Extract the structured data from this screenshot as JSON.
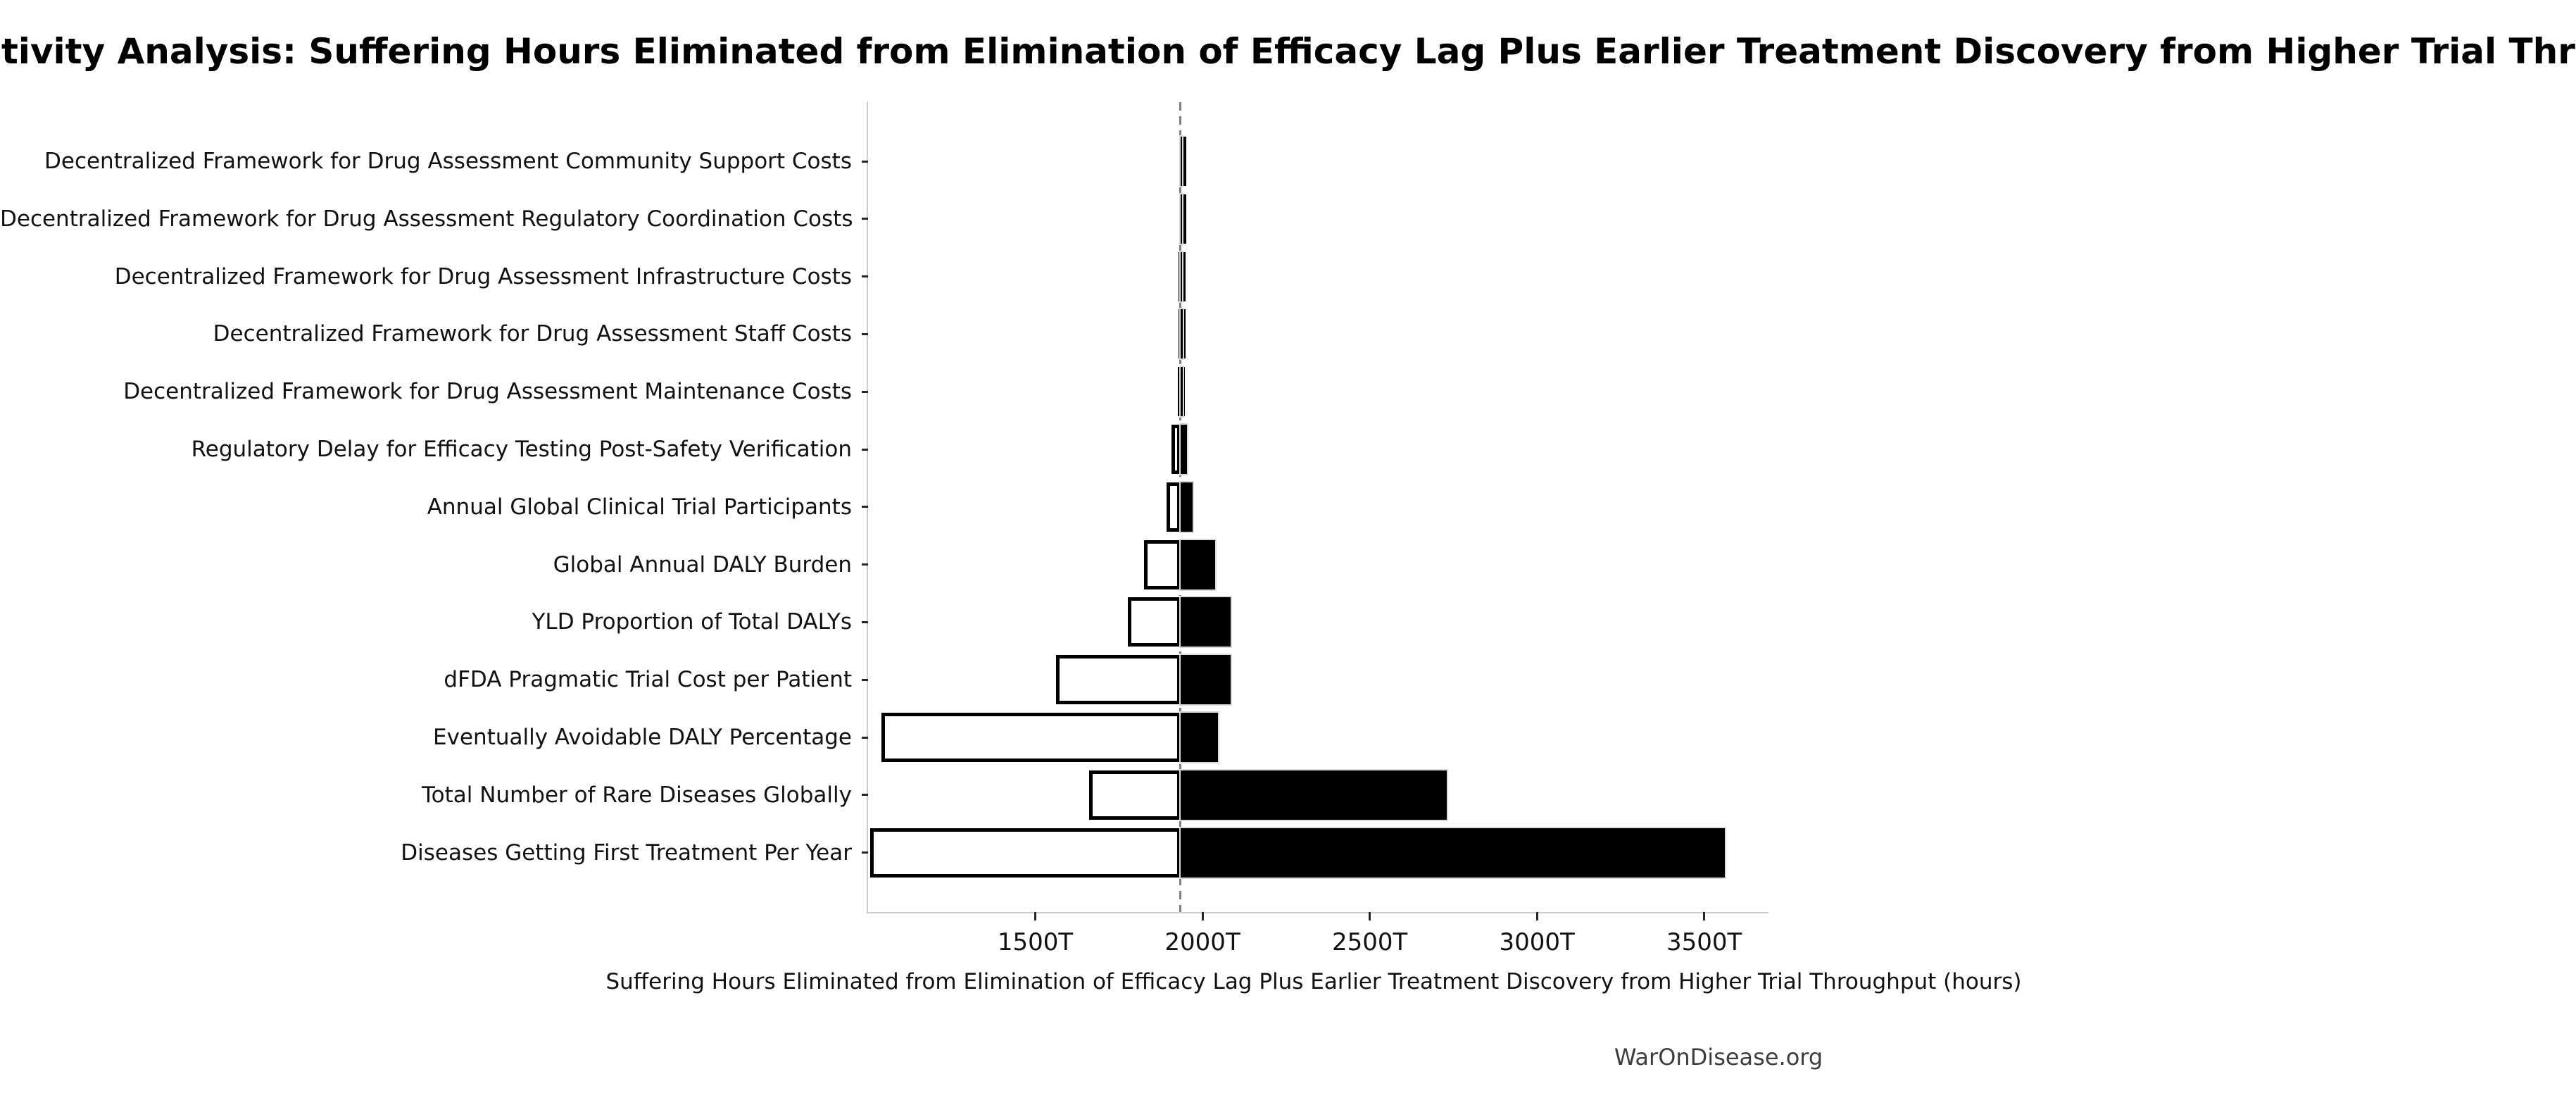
{
  "title": "Sensitivity Analysis: Suffering Hours Eliminated from Elimination of Efficacy Lag Plus Earlier Treatment Discovery from Higher Trial Throughput",
  "footer": "WarOnDisease.org",
  "x_axis": {
    "label": "Suffering Hours Eliminated from Elimination of Efficacy Lag Plus Earlier Treatment Discovery from Higher Trial Throughput (hours)",
    "tick_labels": [
      "1500T",
      "2000T",
      "2500T",
      "3000T",
      "3500T"
    ],
    "tick_values": [
      1500,
      2000,
      2500,
      3000,
      3500
    ],
    "unit": "T"
  },
  "colors": {
    "high_bar_fill": "#000000",
    "low_bar_fill": "#ffffff",
    "low_bar_border": "#000000",
    "high_bar_halo": "#d9d9d9",
    "spine": "#cccccc",
    "baseline_dash": "#7f7f7f",
    "text": "#111111",
    "footer_text": "#3d3d3d"
  },
  "chart_data": {
    "type": "bar",
    "subtype": "tornado",
    "orientation": "horizontal",
    "title": "Sensitivity Analysis: Suffering Hours Eliminated from Elimination of Efficacy Lag Plus Earlier Treatment Discovery from Higher Trial Throughput",
    "xlabel": "Suffering Hours Eliminated from Elimination of Efficacy Lag Plus Earlier Treatment Discovery from Higher Trial Throughput (hours)",
    "ylabel": "",
    "xlim": [
      1000,
      3688
    ],
    "baseline": 1934,
    "grid": false,
    "legend": false,
    "unit_note": "values in trillions of hours (T)",
    "categories": [
      "Decentralized Framework for Drug Assessment Community Support Costs",
      "Decentralized Framework for Drug Assessment Regulatory Coordination Costs",
      "Decentralized Framework for Drug Assessment Infrastructure Costs",
      "Decentralized Framework for Drug Assessment Staff Costs",
      "Decentralized Framework for Drug Assessment Maintenance Costs",
      "Regulatory Delay for Efficacy Testing Post-Safety Verification",
      "Annual Global Clinical Trial Participants",
      "Global Annual DALY Burden",
      "YLD Proportion of Total DALYs",
      "dFDA Pragmatic Trial Cost per Patient",
      "Eventually Avoidable DALY Percentage",
      "Total Number of Rare Diseases Globally",
      "Diseases Getting First Treatment Per Year"
    ],
    "series": [
      {
        "name": "low",
        "values": [
          1931,
          1930,
          1929,
          1928,
          1927,
          1908,
          1892,
          1825,
          1777,
          1563,
          1039,
          1662,
          1006
        ]
      },
      {
        "name": "high",
        "values": [
          1937,
          1938,
          1939,
          1940,
          1941,
          1954,
          1971,
          2038,
          2083,
          2085,
          2047,
          2730,
          3562
        ]
      }
    ]
  }
}
